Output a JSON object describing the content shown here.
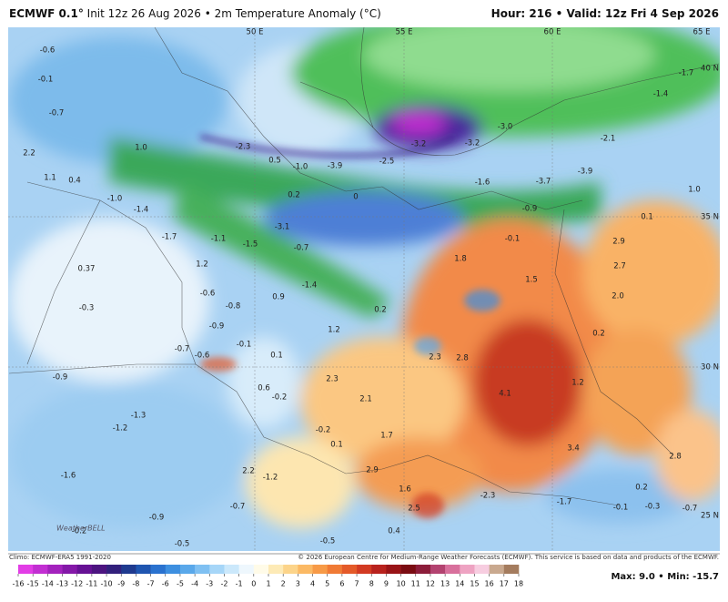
{
  "header": {
    "model": "ECMWF 0.1°",
    "init": "Init 12z 26 Aug 2026",
    "sep": "•",
    "field": "2m Temperature Anomaly (°C)",
    "hour": "Hour: 216",
    "valid": "Valid: 12z Fri 4 Sep 2026"
  },
  "grid_labels": [
    "50 E",
    "55 E",
    "60 E",
    "65 E",
    "40 N",
    "35 N",
    "30 N",
    "25 N"
  ],
  "map_labels": [
    "-0.6",
    "-0.1",
    "-0.7",
    "2.2",
    "1.1",
    "0.4",
    "-1.0",
    "-1.4",
    "-1.7",
    "-1.1",
    "1.2",
    "-0.6",
    "0.37",
    "-0.3",
    "-0.8",
    "-0.9",
    "0.9",
    "-1.4",
    "0.2",
    "1.2",
    "-0.1",
    "0.1",
    "-0.7",
    "-0.6",
    "-0.9",
    "2.3",
    "2.8",
    "0.2",
    "1.2",
    "4.1",
    "0.6",
    "-0.2",
    "2.3",
    "2.1",
    "-1.3",
    "-1.2",
    "-0.2",
    "1.7",
    "0.1",
    "3.4",
    "2.8",
    "-1.6",
    "2.2",
    "-1.2",
    "2.9",
    "-0.7",
    "1.6",
    "0.2",
    "-2.3",
    "-1.7",
    "-0.1",
    "-0.3",
    "-0.7",
    "2.5",
    "-0.9",
    "-0.2",
    "-0.5",
    "-0.5",
    "0.4",
    "-3.9",
    "-2.5",
    "-3.2",
    "-3.2",
    "-3.0",
    "-2.1",
    "-3.9",
    "-3.7",
    "-1.6",
    "-0.9",
    "-0.1",
    "1.8",
    "1.5",
    "0.1",
    "1.0",
    "2.9",
    "2.7",
    "2.0",
    "-1.7",
    "-1.4",
    "-1.0",
    "0.5",
    "-2.3",
    "0.2",
    "0",
    "-3.1",
    "-0.7",
    "-1.5",
    "1.0"
  ],
  "logo": "WeatherBELL",
  "footer": {
    "climo": "Climo: ECMWF-ERA5 1991-2020",
    "copyright": "© 2026 European Centre for Medium-Range Weather Forecasts (ECMWF). This service is based on data and products of the ECMWF.",
    "max": "Max: 9.0",
    "sep": "•",
    "min": "Min: -15.7"
  },
  "colorbar": {
    "labels": [
      -16,
      -15,
      -14,
      -13,
      -12,
      -11,
      -10,
      -9,
      -8,
      -7,
      -6,
      -5,
      -4,
      -3,
      -2,
      -1,
      0,
      1,
      2,
      3,
      4,
      5,
      6,
      7,
      8,
      9,
      10,
      11,
      12,
      13,
      14,
      15,
      16,
      17,
      18
    ],
    "colors": [
      "#e23de6",
      "#c22fd2",
      "#a322bd",
      "#8418a8",
      "#661194",
      "#4c1480",
      "#32207c",
      "#1f3a8f",
      "#1f55b0",
      "#2a72cf",
      "#3d8fe0",
      "#5aa8ea",
      "#7fc0f2",
      "#a6d6f8",
      "#cbe8fb",
      "#eef7fd",
      "#fffbe8",
      "#fdeab6",
      "#fcd48a",
      "#fbb964",
      "#f79a47",
      "#f07a35",
      "#e45a29",
      "#d23a22",
      "#b8221d",
      "#991417",
      "#7a0c12",
      "#8c1d3a",
      "#b34370",
      "#d8709c",
      "#eea3c2",
      "#f7cde0",
      "#c9a98f",
      "#a47c5e"
    ]
  }
}
